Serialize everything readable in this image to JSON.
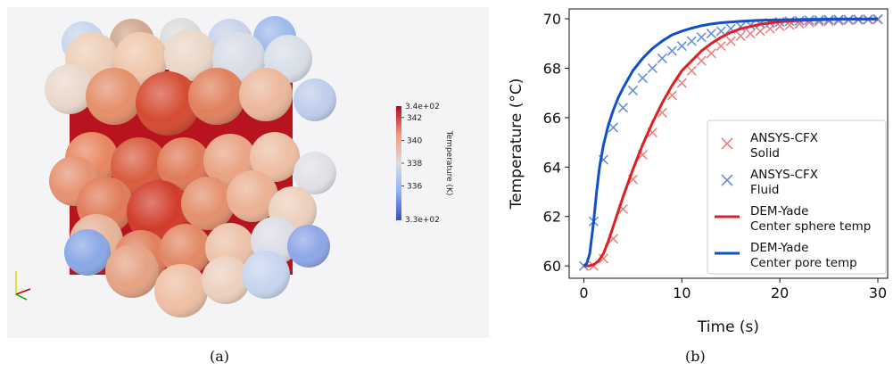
{
  "captions": {
    "a": "(a)",
    "b": "(b)"
  },
  "colorbar": {
    "title": "Temperature (K)",
    "max_label": "3.4e+02",
    "min_label": "3.3e+02",
    "ticks": [
      {
        "label": "342",
        "value": 342
      },
      {
        "label": "340",
        "value": 340
      },
      {
        "label": "338",
        "value": 338
      },
      {
        "label": "336",
        "value": 336
      }
    ],
    "range": [
      333,
      343
    ],
    "colors": {
      "hot": "#b40426",
      "mid": "#dddddd",
      "cold": "#3b4cc0"
    }
  },
  "chart_data": {
    "type": "line",
    "xlabel": "Time (s)",
    "ylabel": "Temperature (°C)",
    "xlim": [
      -1.5,
      31
    ],
    "ylim": [
      59.5,
      70.4
    ],
    "xticks": [
      0,
      10,
      20,
      30
    ],
    "yticks": [
      60,
      62,
      64,
      66,
      68,
      70
    ],
    "grid": false,
    "legend_position": "lower-right",
    "series": [
      {
        "name": "ANSYS-CFX\nSolid",
        "kind": "scatter",
        "marker": "x",
        "color": "#f08080",
        "x": [
          1,
          2,
          3,
          4,
          5,
          6,
          7,
          8,
          9,
          10,
          11,
          12,
          13,
          14,
          15,
          16,
          17,
          18,
          19,
          20,
          21,
          22,
          23,
          24,
          25,
          26,
          27,
          28,
          29,
          30
        ],
        "y": [
          60.0,
          60.3,
          61.1,
          62.3,
          63.5,
          64.5,
          65.4,
          66.2,
          66.9,
          67.4,
          67.9,
          68.3,
          68.6,
          68.9,
          69.1,
          69.3,
          69.4,
          69.5,
          69.6,
          69.7,
          69.75,
          69.8,
          69.85,
          69.88,
          69.9,
          69.92,
          69.94,
          69.95,
          69.96,
          69.97
        ]
      },
      {
        "name": "ANSYS-CFX\nFluid",
        "kind": "scatter",
        "marker": "x",
        "color": "#6a8fd8",
        "x": [
          0,
          1,
          2,
          3,
          4,
          5,
          6,
          7,
          8,
          9,
          10,
          11,
          12,
          13,
          14,
          15,
          16,
          17,
          18,
          19,
          20,
          21,
          22,
          23,
          24,
          25,
          26,
          27,
          28,
          29,
          30
        ],
        "y": [
          60.0,
          61.8,
          64.3,
          65.6,
          66.4,
          67.1,
          67.6,
          68.0,
          68.4,
          68.7,
          68.9,
          69.1,
          69.25,
          69.4,
          69.5,
          69.6,
          69.68,
          69.74,
          69.8,
          69.84,
          69.87,
          69.9,
          69.92,
          69.94,
          69.95,
          69.96,
          69.97,
          69.97,
          69.98,
          69.98,
          69.99
        ]
      },
      {
        "name": "DEM-Yade\nCenter sphere temp",
        "kind": "line",
        "color": "#e02020",
        "x": [
          0,
          0.5,
          1,
          1.5,
          2,
          2.5,
          3,
          3.5,
          4,
          5,
          6,
          7,
          8,
          9,
          10,
          11,
          12,
          13,
          14,
          15,
          16,
          18,
          20,
          22,
          24,
          26,
          28,
          30
        ],
        "y": [
          60.0,
          60.0,
          60.05,
          60.2,
          60.5,
          61.0,
          61.6,
          62.2,
          62.8,
          63.9,
          64.9,
          65.8,
          66.6,
          67.3,
          67.9,
          68.3,
          68.7,
          69.0,
          69.25,
          69.45,
          69.6,
          69.78,
          69.88,
          69.93,
          69.96,
          69.98,
          69.99,
          69.99
        ]
      },
      {
        "name": "DEM-Yade\nCenter pore temp",
        "kind": "line",
        "color": "#1050c8",
        "x": [
          0,
          0.3,
          0.6,
          1,
          1.3,
          1.6,
          2,
          2.5,
          3,
          3.5,
          4,
          5,
          6,
          7,
          8,
          9,
          10,
          11,
          12,
          13,
          14,
          16,
          18,
          20,
          22,
          24,
          26,
          28,
          30
        ],
        "y": [
          60.0,
          60.1,
          60.5,
          61.8,
          63.0,
          64.0,
          64.9,
          65.7,
          66.3,
          66.8,
          67.2,
          67.9,
          68.4,
          68.8,
          69.1,
          69.35,
          69.5,
          69.62,
          69.72,
          69.79,
          69.84,
          69.9,
          69.94,
          69.96,
          69.97,
          69.98,
          69.99,
          69.99,
          70.0
        ]
      }
    ]
  }
}
